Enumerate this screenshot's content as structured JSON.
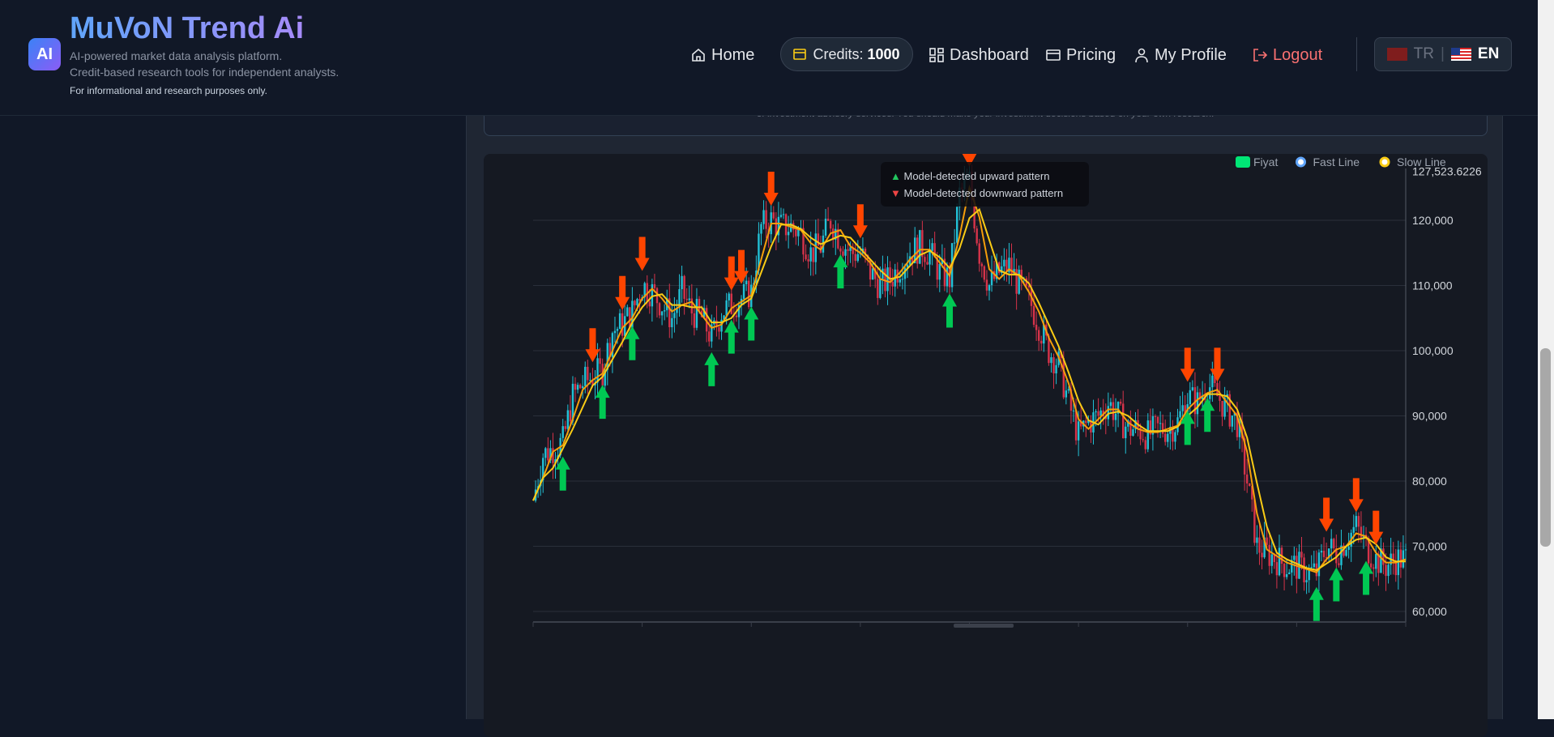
{
  "header": {
    "logo_badge": "AI",
    "brand": "MuVoN Trend Ai",
    "tagline1": "AI-powered market data analysis platform.",
    "tagline2": "Credit-based research tools for independent analysts.",
    "tagline3": "For informational and research purposes only."
  },
  "nav": {
    "home": "Home",
    "credits_label": "Credits:",
    "credits_value": "1000",
    "dashboard": "Dashboard",
    "pricing": "Pricing",
    "profile": "My Profile",
    "logout": "Logout",
    "lang_tr": "TR",
    "lang_en": "EN"
  },
  "disclaimer": "of investment advisory services. You should make your investment decisions based on your own research.",
  "tooltip": {
    "up": "Model-detected upward pattern",
    "down": "Model-detected downward pattern"
  },
  "colors": {
    "up": "#00c853",
    "down": "#ff4500",
    "candle_up": "#22c1d6",
    "candle_down": "#d6334a",
    "fast": "#f59e0b",
    "slow": "#facc15"
  },
  "chart_data": {
    "type": "line",
    "title": "",
    "legend": [
      "Fiyat",
      "Fast Line",
      "Slow Line"
    ],
    "legend_placement": "top-right",
    "ylim": [
      60000,
      127523.6226
    ],
    "y_ticks": [
      "127,523.6226",
      "120,000",
      "110,000",
      "100,000",
      "90,000",
      "80,000",
      "70,000",
      "60,000"
    ],
    "y_tick_values": [
      127523.6226,
      120000,
      110000,
      100000,
      90000,
      80000,
      70000,
      60000
    ],
    "price": [
      77000,
      84000,
      85000,
      86000,
      93000,
      95000,
      96000,
      97000,
      103000,
      104000,
      106000,
      110000,
      109000,
      107000,
      105000,
      109000,
      106000,
      105000,
      102000,
      106000,
      107000,
      108000,
      109000,
      119000,
      120000,
      119000,
      119000,
      118000,
      115000,
      116000,
      120000,
      117000,
      115000,
      115000,
      112000,
      110000,
      111000,
      113000,
      115000,
      116000,
      115000,
      112000,
      111000,
      124000,
      126000,
      115000,
      110000,
      112000,
      113000,
      110000,
      108000,
      104000,
      100000,
      98000,
      92000,
      87000,
      89000,
      90000,
      92000,
      90000,
      88000,
      88000,
      87000,
      88000,
      88000,
      89000,
      93000,
      92000,
      95000,
      93000,
      91000,
      89000,
      80000,
      70000,
      69000,
      68000,
      67000,
      67000,
      66000,
      66000,
      70000,
      69000,
      71000,
      73000,
      70000,
      68000,
      67000,
      68000,
      68000
    ],
    "up_signals": [
      3,
      7,
      10,
      18,
      20,
      22,
      31,
      42,
      66,
      68,
      79,
      81,
      84
    ],
    "down_signals": [
      6,
      9,
      11,
      20,
      21,
      24,
      33,
      44,
      66,
      69,
      80,
      83,
      85
    ]
  }
}
